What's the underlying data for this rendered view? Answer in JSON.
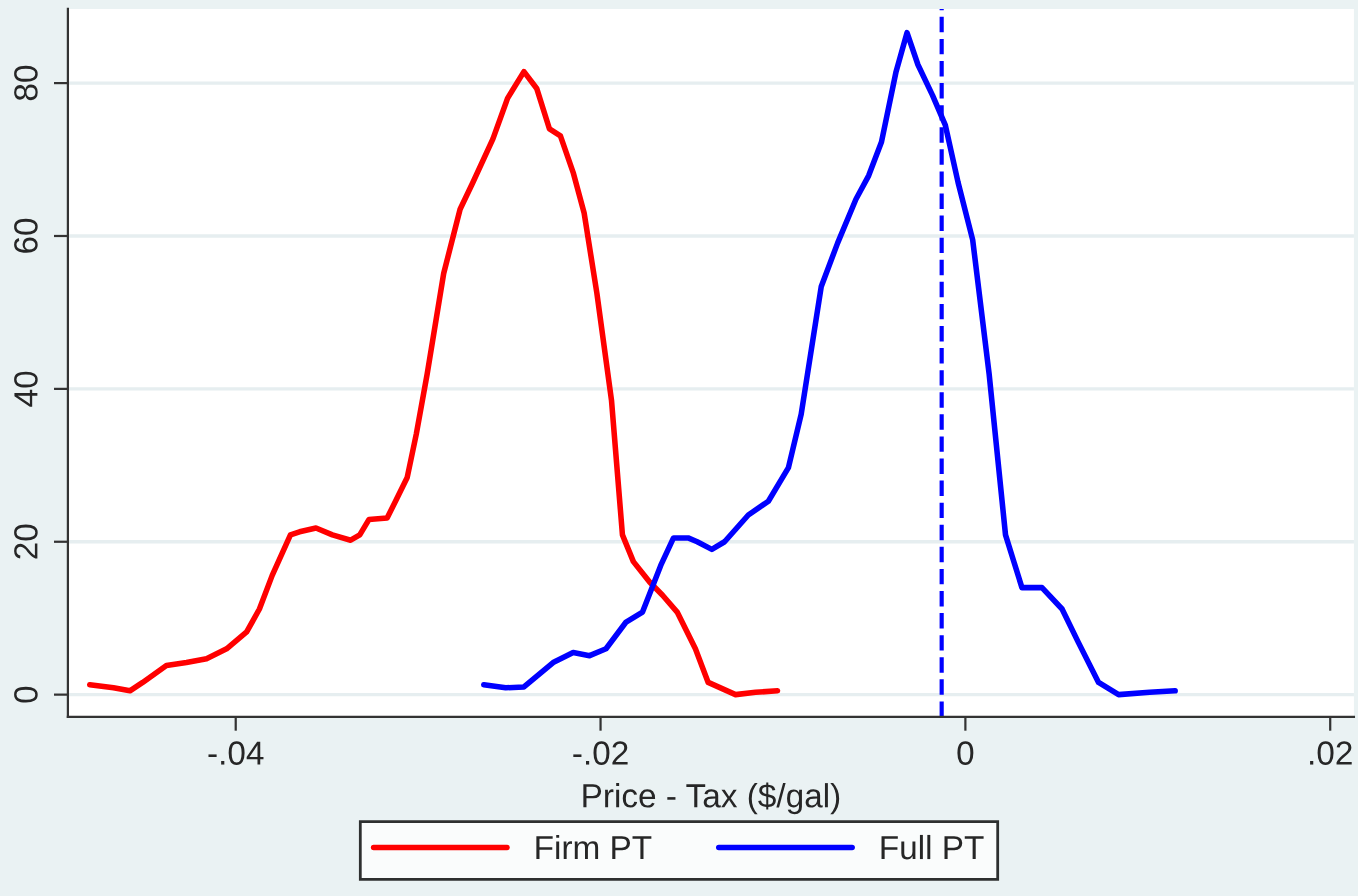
{
  "chart_data": {
    "type": "line",
    "xlabel": "Price - Tax ($/gal)",
    "xlim": [
      -0.0492,
      0.0213
    ],
    "ylim": [
      -2.9,
      89.7
    ],
    "xticks": [
      {
        "value": -0.04,
        "label": "-.04"
      },
      {
        "value": -0.02,
        "label": "-.02"
      },
      {
        "value": 0,
        "label": "0"
      },
      {
        "value": 0.02,
        "label": ".02"
      }
    ],
    "yticks": [
      0,
      20,
      40,
      60,
      80
    ],
    "grid": "y",
    "legend": "bottom",
    "marker": "none",
    "line_style": "solid",
    "ref_lines": [
      {
        "axis": "x",
        "value": -0.0013,
        "color": "#0000ff",
        "line_style": "dashed"
      }
    ],
    "series": [
      {
        "name": "Firm PT",
        "color": "#ff0000",
        "x": [
          -0.048,
          -0.0467,
          -0.0458,
          -0.0451,
          -0.0438,
          -0.0427,
          -0.0416,
          -0.0405,
          -0.0394,
          -0.0387,
          -0.038,
          -0.037,
          -0.0365,
          -0.0356,
          -0.0347,
          -0.0337,
          -0.0332,
          -0.0327,
          -0.0317,
          -0.0312,
          -0.0306,
          -0.0301,
          -0.0295,
          -0.0286,
          -0.0277,
          -0.027,
          -0.0259,
          -0.0251,
          -0.0242,
          -0.0235,
          -0.0228,
          -0.0222,
          -0.0215,
          -0.0209,
          -0.0202,
          -0.0194,
          -0.0188,
          -0.0182,
          -0.0173,
          -0.0166,
          -0.0158,
          -0.0148,
          -0.0141,
          -0.0126,
          -0.0115,
          -0.0103
        ],
        "values": [
          1.3,
          0.9,
          0.5,
          1.6,
          3.8,
          4.2,
          4.7,
          6.0,
          8.2,
          11.2,
          15.6,
          20.9,
          21.3,
          21.8,
          20.9,
          20.2,
          20.9,
          22.9,
          23.1,
          25.5,
          28.4,
          34.1,
          42.0,
          55.1,
          63.5,
          67.0,
          72.7,
          78.0,
          81.5,
          79.3,
          74.0,
          73.1,
          68.3,
          63.0,
          52.5,
          38.5,
          20.9,
          17.4,
          14.7,
          13.0,
          10.8,
          6.0,
          1.6,
          0,
          0.3,
          0.5
        ]
      },
      {
        "name": "Full PT",
        "color": "#0000ff",
        "x": [
          -0.0264,
          -0.0252,
          -0.0242,
          -0.0226,
          -0.0215,
          -0.0206,
          -0.0197,
          -0.0186,
          -0.0177,
          -0.0167,
          -0.016,
          -0.0152,
          -0.0147,
          -0.0139,
          -0.0132,
          -0.0119,
          -0.0108,
          -0.0097,
          -0.009,
          -0.0079,
          -0.007,
          -0.006,
          -0.0053,
          -0.0046,
          -0.0038,
          -0.0032,
          -0.0026,
          -0.0018,
          -0.0011,
          -0.0004,
          0.0004,
          0.0013,
          0.0022,
          0.0031,
          0.0042,
          0.0053,
          0.0062,
          0.0073,
          0.0084,
          0.0101,
          0.0115
        ],
        "values": [
          1.3,
          0.9,
          1.0,
          4.2,
          5.5,
          5.1,
          6.0,
          9.5,
          10.8,
          16.9,
          20.5,
          20.5,
          20.0,
          19.0,
          20.0,
          23.5,
          25.3,
          29.7,
          36.7,
          53.4,
          59.1,
          64.8,
          67.9,
          72.3,
          81.5,
          86.6,
          82.4,
          78.4,
          74.5,
          67.0,
          59.5,
          42.0,
          20.9,
          14.0,
          14.0,
          11.2,
          6.8,
          1.6,
          0,
          0.3,
          0.5
        ]
      }
    ]
  }
}
